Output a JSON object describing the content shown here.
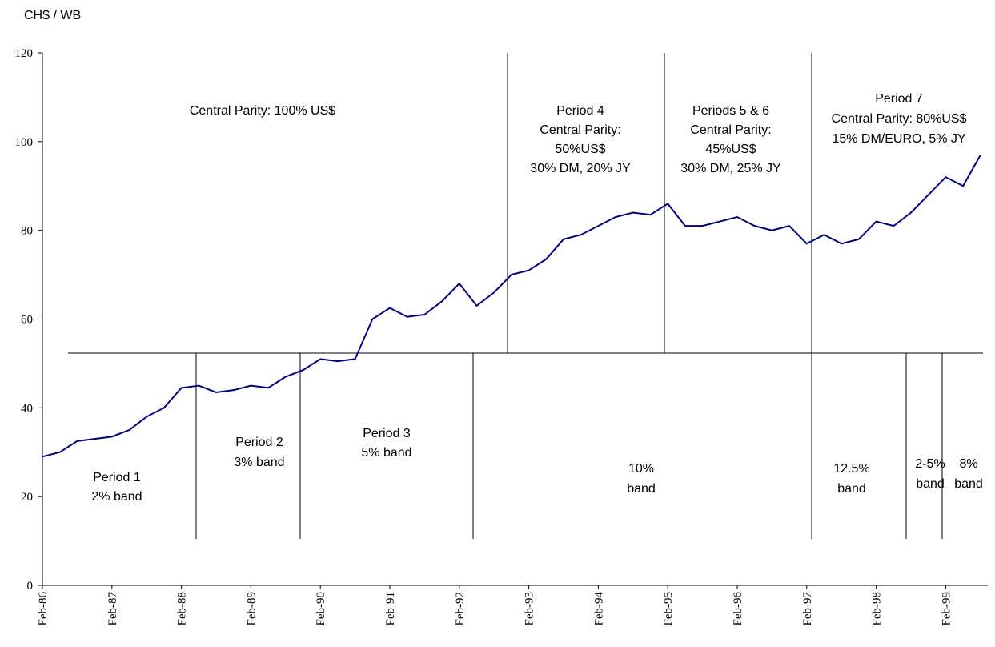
{
  "chart_data": {
    "type": "line",
    "y_label": "CH$ / WB",
    "categories": [
      "Feb-86",
      null,
      null,
      null,
      "Feb-87",
      null,
      null,
      null,
      "Feb-88",
      null,
      null,
      null,
      "Feb-89",
      null,
      null,
      null,
      "Feb-90",
      null,
      null,
      null,
      "Feb-91",
      null,
      null,
      null,
      "Feb-92",
      null,
      null,
      null,
      "Feb-93",
      null,
      null,
      null,
      "Feb-94",
      null,
      null,
      null,
      "Feb-95",
      null,
      null,
      null,
      "Feb-96",
      null,
      null,
      null,
      "Feb-97",
      null,
      null,
      null,
      "Feb-98",
      null,
      null,
      null,
      "Feb-99",
      null,
      null
    ],
    "series": [
      {
        "color": "#000080",
        "values": [
          29,
          30,
          32.5,
          33,
          33.5,
          35,
          38,
          40,
          44.5,
          45,
          43.5,
          44,
          45,
          44.5,
          47,
          48.5,
          51,
          50.5,
          51,
          60,
          62.5,
          60.5,
          61,
          64,
          68,
          63,
          66,
          70,
          71,
          73.5,
          78,
          79,
          81,
          83,
          84,
          83.5,
          86,
          81,
          81,
          82,
          83,
          81,
          80,
          81,
          77,
          79,
          77,
          78,
          82,
          81,
          84,
          88,
          92,
          90,
          97
        ]
      }
    ],
    "ylim": [
      0,
      120
    ],
    "yticks": [
      0,
      20,
      40,
      60,
      80,
      100,
      120
    ],
    "annotations": [
      {
        "lines": [
          "Central Parity: 100% US$"
        ]
      },
      {
        "lines": [
          "Period 4",
          "Central Parity:",
          "50%US$",
          "30% DM, 20% JY"
        ]
      },
      {
        "lines": [
          "Periods 5 & 6",
          "Central Parity:",
          "45%US$",
          "30% DM, 25% JY"
        ]
      },
      {
        "lines": [
          "Period 7",
          "Central Parity: 80%US$",
          "15% DM/EURO, 5% JY"
        ]
      },
      {
        "lines": [
          "Period 1",
          "2% band"
        ]
      },
      {
        "lines": [
          "Period 2",
          "3% band"
        ]
      },
      {
        "lines": [
          "Period 3",
          "5% band"
        ]
      },
      {
        "lines": [
          "10%",
          "band"
        ]
      },
      {
        "lines": [
          "12.5%",
          "band"
        ]
      },
      {
        "lines": [
          "2-5%",
          "band"
        ]
      },
      {
        "lines": [
          "8%",
          "band"
        ]
      }
    ]
  }
}
